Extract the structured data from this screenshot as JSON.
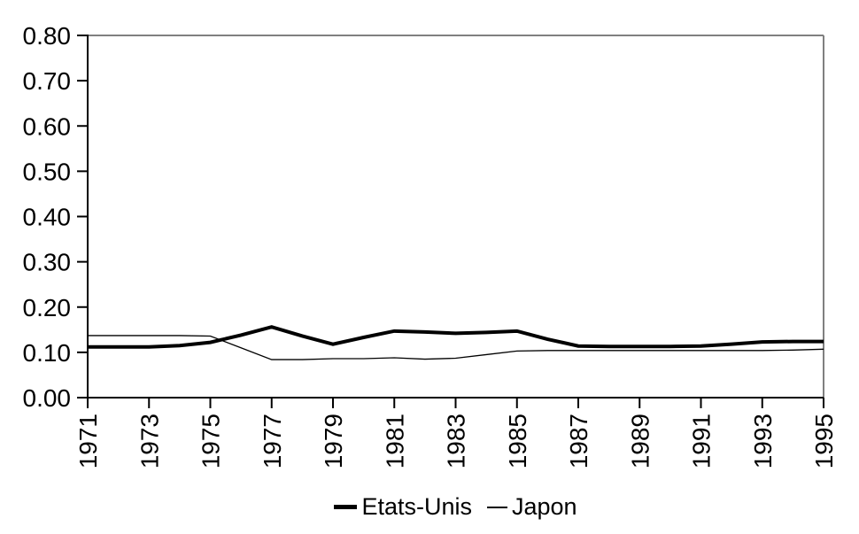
{
  "chart_data": {
    "type": "line",
    "title": "",
    "xlabel": "",
    "ylabel": "",
    "x": [
      1971,
      1972,
      1973,
      1974,
      1975,
      1976,
      1977,
      1978,
      1979,
      1980,
      1981,
      1982,
      1983,
      1984,
      1985,
      1986,
      1987,
      1988,
      1989,
      1990,
      1991,
      1992,
      1993,
      1994,
      1995
    ],
    "series": [
      {
        "name": "Etats-Unis",
        "stroke_width": 4,
        "values": [
          0.112,
          0.112,
          0.112,
          0.115,
          0.122,
          0.138,
          0.156,
          0.136,
          0.118,
          0.133,
          0.147,
          0.145,
          0.142,
          0.144,
          0.147,
          0.129,
          0.114,
          0.113,
          0.113,
          0.113,
          0.114,
          0.118,
          0.123,
          0.124,
          0.124
        ]
      },
      {
        "name": "Japon",
        "stroke_width": 1.3,
        "values": [
          0.137,
          0.137,
          0.137,
          0.137,
          0.136,
          0.11,
          0.084,
          0.084,
          0.086,
          0.086,
          0.088,
          0.085,
          0.087,
          0.095,
          0.103,
          0.104,
          0.104,
          0.104,
          0.104,
          0.104,
          0.104,
          0.104,
          0.104,
          0.105,
          0.107
        ]
      }
    ],
    "ylim": [
      0,
      0.8
    ],
    "y_ticks": [
      0,
      0.1,
      0.2,
      0.3,
      0.4,
      0.5,
      0.6,
      0.7,
      0.8
    ],
    "y_tick_labels": [
      "0.00",
      "0.10",
      "0.20",
      "0.30",
      "0.40",
      "0.50",
      "0.60",
      "0.70",
      "0.80"
    ],
    "x_tick_labels": [
      "1971",
      "1973",
      "1975",
      "1977",
      "1979",
      "1981",
      "1983",
      "1985",
      "1987",
      "1989",
      "1991",
      "1993",
      "1995"
    ],
    "grid": false,
    "legend_position": "bottom",
    "colors": {
      "line": "#000000",
      "axis": "#000000",
      "frame": "#808080",
      "text": "#000000",
      "background": "#ffffff"
    }
  }
}
